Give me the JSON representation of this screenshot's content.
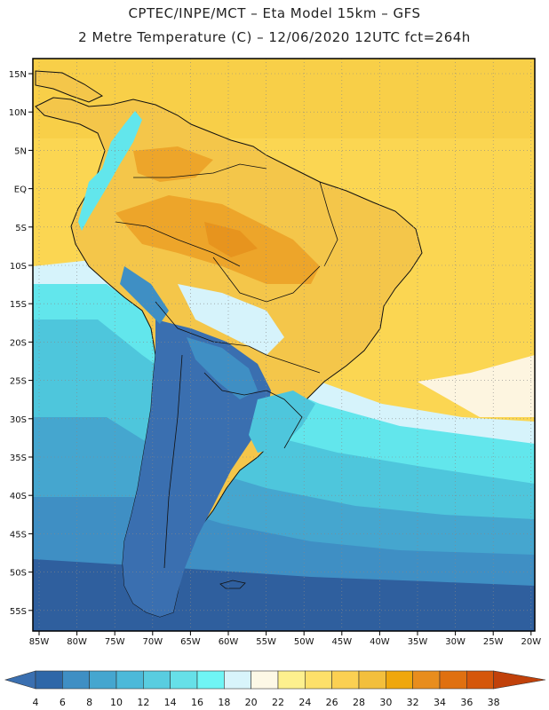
{
  "header": {
    "line1": "CPTEC/INPE/MCT –  Eta Model 15km – GFS",
    "line2": "2 Metre Temperature (C) – 12/06/2020 12UTC fct=264h"
  },
  "axes": {
    "lat_labels": [
      "15N",
      "10N",
      "5N",
      "EQ",
      "5S",
      "10S",
      "15S",
      "20S",
      "25S",
      "30S",
      "35S",
      "40S",
      "45S",
      "50S",
      "55S"
    ],
    "lon_labels": [
      "85W",
      "80W",
      "75W",
      "70W",
      "65W",
      "60W",
      "55W",
      "50W",
      "45W",
      "40W",
      "35W",
      "30W",
      "25W",
      "20W"
    ]
  },
  "colorbar": {
    "labels": [
      "4",
      "6",
      "8",
      "10",
      "12",
      "14",
      "16",
      "18",
      "20",
      "22",
      "24",
      "26",
      "28",
      "30",
      "32",
      "34",
      "36",
      "38"
    ],
    "colors": [
      "#3a6fb0",
      "#2e67a8",
      "#3f8fc4",
      "#45a6cf",
      "#4cb9d9",
      "#59cde0",
      "#66e0e8",
      "#6ff5f5",
      "#d8f4fb",
      "#fdf8e6",
      "#fdf08e",
      "#fde06a",
      "#fbd052",
      "#f3bf3c",
      "#efa70c",
      "#e88d1d",
      "#e07010",
      "#d5570b",
      "#c1410a"
    ]
  },
  "palette": {
    "ocean_south": "#2f5f9e",
    "ocean_mid": "#4ec6dc",
    "ocean_cyan": "#62e6ec",
    "ocean_light": "#d6f3fb",
    "ocean_tropical": "#fbd652",
    "land_tropical": "#f2b73f",
    "andes_cold": "#2f5f9e"
  }
}
